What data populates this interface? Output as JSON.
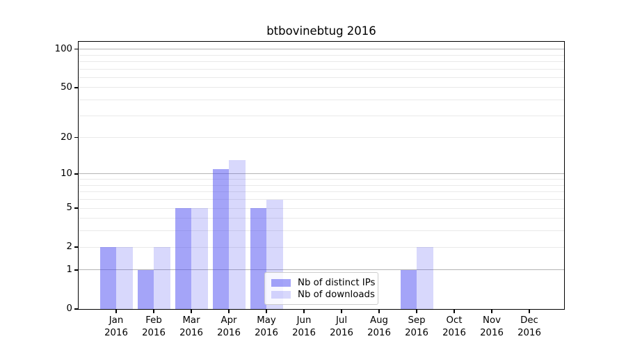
{
  "chart_data": {
    "type": "bar",
    "title": "btbovinebtug 2016",
    "categories": [
      "Jan",
      "Feb",
      "Mar",
      "Apr",
      "May",
      "Jun",
      "Jul",
      "Aug",
      "Sep",
      "Oct",
      "Nov",
      "Dec"
    ],
    "category_year": "2016",
    "series": [
      {
        "name": "Nb of distinct IPs",
        "color": "rgba(70,70,240,0.49)",
        "values": [
          2,
          1,
          5,
          11,
          5,
          0,
          0,
          0,
          1,
          0,
          0,
          0
        ]
      },
      {
        "name": "Nb of downloads",
        "color": "rgba(70,70,240,0.21)",
        "values": [
          2,
          2,
          5,
          13,
          6,
          0,
          0,
          0,
          2,
          0,
          0,
          0
        ]
      }
    ],
    "xlabel": "",
    "ylabel": "",
    "y_axis": {
      "scale": "log1p",
      "tick_labels": [
        100,
        50,
        20,
        10,
        5,
        2,
        1,
        0
      ],
      "major_gridlines": [
        1,
        10,
        100
      ],
      "minor_gridlines": [
        2,
        3,
        4,
        5,
        6,
        7,
        8,
        9,
        20,
        30,
        40,
        50,
        60,
        70,
        80,
        90
      ],
      "ylim": [
        0,
        112
      ]
    },
    "legend": {
      "entries": [
        "Nb of distinct IPs",
        "Nb of downloads"
      ],
      "position": "lower center"
    },
    "grid": true,
    "colors": {
      "bar_base": "#4646f0",
      "grid_major": "#b4b4b4",
      "grid_minor": "#e9e9e9",
      "axis": "#000000"
    }
  }
}
